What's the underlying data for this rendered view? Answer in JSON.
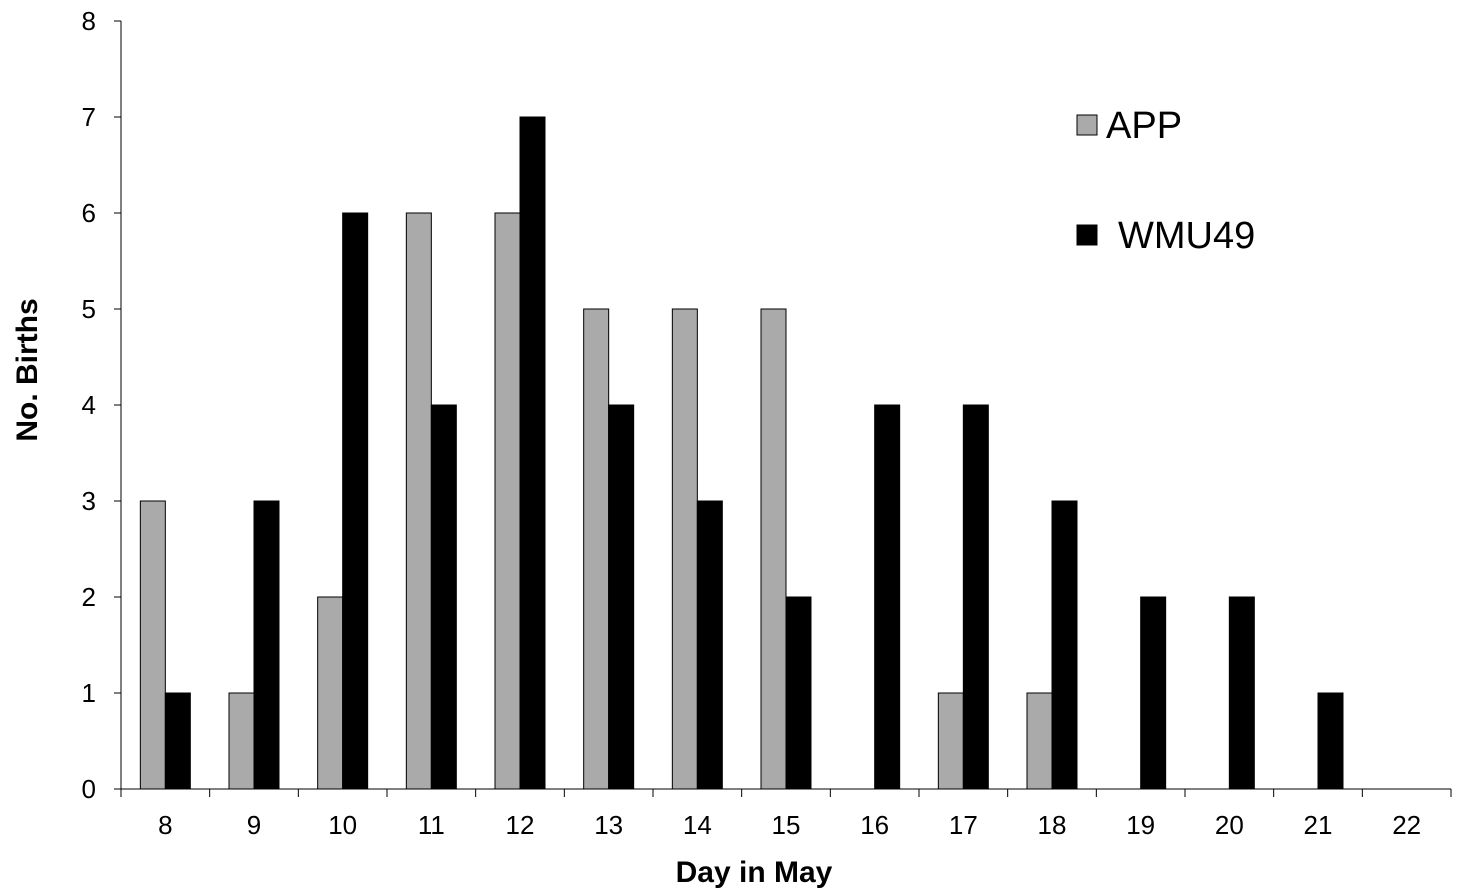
{
  "chart_data": {
    "type": "bar",
    "title": "",
    "xlabel": "Day in May",
    "ylabel": "No. Births",
    "categories": [
      "8",
      "9",
      "10",
      "11",
      "12",
      "13",
      "14",
      "15",
      "16",
      "17",
      "18",
      "19",
      "20",
      "21",
      "22"
    ],
    "series": [
      {
        "name": "APP",
        "color": "#aaaaaa",
        "values": [
          3,
          1,
          2,
          6,
          6,
          5,
          5,
          5,
          0,
          1,
          1,
          0,
          0,
          0,
          0
        ]
      },
      {
        "name": "WMU49",
        "color": "#000000",
        "values": [
          1,
          3,
          6,
          4,
          7,
          4,
          3,
          2,
          4,
          4,
          3,
          2,
          2,
          1,
          0
        ]
      }
    ],
    "ylim": [
      0,
      8
    ],
    "yticks": [
      "0",
      "1",
      "2",
      "3",
      "4",
      "5",
      "6",
      "7",
      "8"
    ],
    "grid": false,
    "legend": "top-right"
  }
}
